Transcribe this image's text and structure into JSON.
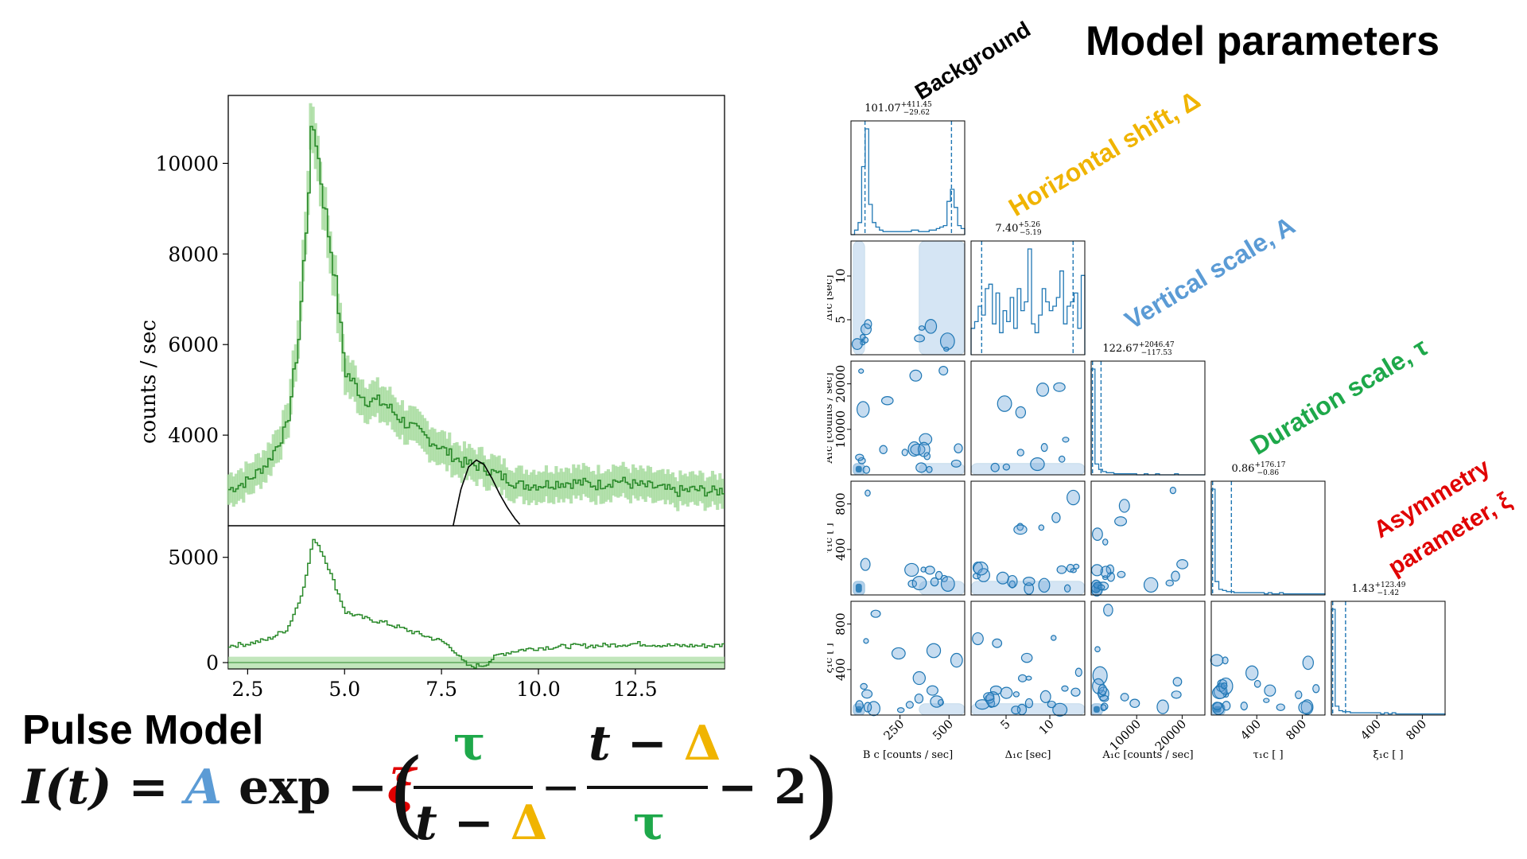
{
  "header": {
    "model_parameters": "Model parameters",
    "pulse_model": "Pulse Model"
  },
  "annotations": {
    "background": "Background",
    "horizontal_shift": "Horizontal shift, Δ",
    "vertical_scale": "Vertical scale, A",
    "duration_scale": "Duration scale, τ",
    "asymmetry_line1": "Asymmetry",
    "asymmetry_line2": "parameter, ξ"
  },
  "equation": {
    "lhs": "I(t) = ",
    "A": "A",
    "exp": " exp −",
    "xi": "ξ",
    "open": "(",
    "tau_num": "τ",
    "t_minus": "t − ",
    "delta": "Δ",
    "minus": "−",
    "tau_den": "τ",
    "minus_two": "− 2",
    "close": ")"
  },
  "colors": {
    "green": "#2a8a2a",
    "green_light": "#a8dca0",
    "blue_dark": "#1f77b4",
    "blue_fill": "#5b9bd5",
    "gold": "#f0b400",
    "red": "#e00000"
  },
  "chart_data": [
    {
      "type": "line",
      "panel": "light curve (top)",
      "ylabel": "counts / sec",
      "xlim": [
        2.0,
        14.8
      ],
      "ylim": [
        2000,
        11500
      ],
      "yticks": [
        "4000",
        "6000",
        "8000",
        "10000"
      ],
      "ytick_values": [
        4000,
        6000,
        8000,
        10000
      ],
      "series": [
        {
          "name": "data",
          "x": [
            2.0,
            2.5,
            3.0,
            3.5,
            3.8,
            4.0,
            4.1,
            4.2,
            4.3,
            4.5,
            4.7,
            5.0,
            5.5,
            6.0,
            6.5,
            7.0,
            7.5,
            8.0,
            8.5,
            9.0,
            9.5,
            10.0,
            10.5,
            11.0,
            11.5,
            12.0,
            12.5,
            13.0,
            13.5,
            14.0,
            14.5,
            14.8
          ],
          "values": [
            2800,
            3000,
            3400,
            4200,
            6200,
            8800,
            10400,
            10900,
            10100,
            8800,
            7700,
            5400,
            4800,
            4700,
            4300,
            4000,
            3700,
            3400,
            3300,
            3100,
            2900,
            2900,
            2950,
            2950,
            2900,
            3000,
            2900,
            2850,
            2750,
            2800,
            2750,
            2800
          ]
        },
        {
          "name": "pulse model",
          "x": [
            7.8,
            8.0,
            8.2,
            8.4,
            8.6,
            8.8,
            9.0,
            9.2,
            9.4,
            9.55
          ],
          "values": [
            2000,
            2800,
            3300,
            3450,
            3350,
            3050,
            2700,
            2400,
            2150,
            2000
          ]
        }
      ]
    },
    {
      "type": "line",
      "panel": "residual (bottom)",
      "xlim": [
        2.0,
        14.8
      ],
      "ylim": [
        -300,
        6500
      ],
      "xticks": [
        "2.5",
        "5.0",
        "7.5",
        "10.0",
        "12.5"
      ],
      "xtick_values": [
        2.5,
        5.0,
        7.5,
        10.0,
        12.5
      ],
      "yticks": [
        "0",
        "5000"
      ],
      "ytick_values": [
        0,
        5000
      ],
      "series": [
        {
          "name": "residual",
          "x": [
            2.0,
            2.5,
            3.0,
            3.5,
            3.8,
            4.0,
            4.1,
            4.2,
            4.3,
            4.5,
            4.7,
            5.0,
            5.5,
            6.0,
            6.5,
            7.0,
            7.5,
            7.8,
            8.0,
            8.2,
            8.4,
            8.6,
            8.8,
            9.0,
            9.5,
            10.0,
            10.5,
            11.0,
            11.5,
            12.0,
            12.5,
            13.0,
            13.5,
            14.0,
            14.5,
            14.8
          ],
          "values": [
            800,
            900,
            1100,
            1600,
            2900,
            4200,
            5300,
            5900,
            5600,
            4800,
            3800,
            2400,
            2100,
            1900,
            1600,
            1300,
            1000,
            600,
            100,
            -200,
            -150,
            -100,
            200,
            400,
            600,
            700,
            750,
            800,
            800,
            850,
            900,
            850,
            800,
            800,
            800,
            850
          ]
        }
      ]
    },
    {
      "type": "corner",
      "title": "Model parameters",
      "parameters": [
        "B",
        "Δ",
        "A",
        "τ",
        "ξ"
      ],
      "axis_labels": [
        "B c [counts / sec]",
        "Δ₁c [sec]",
        "A₁c [counts / sec]",
        "τ₁c [ ]",
        "ξ₁c [ ]"
      ],
      "marginal_titles": [
        {
          "value": "101.07",
          "plus": "+411.45",
          "minus": "−29.62"
        },
        {
          "value": "7.40",
          "plus": "+5.26",
          "minus": "−5.19"
        },
        {
          "value": "122.67",
          "plus": "+2046.47",
          "minus": "−117.53"
        },
        {
          "value": "0.86",
          "plus": "+176.17",
          "minus": "−0.86"
        },
        {
          "value": "1.43",
          "plus": "+123.49",
          "minus": "−1.42"
        }
      ],
      "ranges": [
        [
          0,
          580
        ],
        [
          1,
          14
        ],
        [
          0,
          25000
        ],
        [
          0,
          1000
        ],
        [
          0,
          1000
        ]
      ],
      "xtick_labels": [
        [
          "250",
          "500"
        ],
        [
          "5",
          "10"
        ],
        [
          "10000",
          "20000"
        ],
        [
          "400",
          "800"
        ],
        [
          "400",
          "800"
        ]
      ],
      "xtick_values": [
        [
          250,
          500
        ],
        [
          5,
          10
        ],
        [
          10000,
          20000
        ],
        [
          400,
          800
        ],
        [
          400,
          800
        ]
      ],
      "ytick_labels": [
        [],
        [
          "5",
          "10"
        ],
        [
          "10000",
          "20000"
        ],
        [
          "400",
          "800"
        ],
        [
          "400",
          "800"
        ]
      ],
      "ytick_values": [
        [],
        [
          5,
          10
        ],
        [
          10000,
          20000
        ],
        [
          400,
          800
        ],
        [
          400,
          800
        ]
      ],
      "hist_B": [
        0,
        3,
        8,
        45,
        70,
        20,
        8,
        5,
        3,
        2,
        2,
        2,
        2,
        2,
        2,
        2,
        2,
        3,
        3,
        2,
        2,
        2,
        3,
        3,
        4,
        5,
        6,
        22,
        30,
        18,
        6,
        4
      ],
      "hist_Delta": [
        12,
        15,
        22,
        18,
        30,
        32,
        14,
        28,
        10,
        20,
        15,
        26,
        12,
        30,
        20,
        24,
        48,
        14,
        10,
        18,
        30,
        24,
        20,
        22,
        26,
        38,
        14,
        22,
        24,
        28,
        12,
        36
      ],
      "hist_A": [
        98,
        10,
        5,
        3,
        2,
        2,
        1,
        1,
        1,
        1,
        1,
        1,
        0,
        0,
        1,
        0,
        0,
        1,
        0,
        0,
        0,
        0,
        1,
        0,
        0,
        0,
        0,
        0,
        0,
        0
      ],
      "hist_tau": [
        95,
        12,
        5,
        4,
        3,
        3,
        2,
        2,
        2,
        2,
        2,
        2,
        2,
        2,
        1,
        2,
        1,
        1,
        2,
        1,
        1,
        1,
        1,
        1,
        1,
        1,
        1,
        1,
        1,
        1
      ],
      "hist_xi": [
        96,
        8,
        4,
        3,
        3,
        2,
        2,
        2,
        2,
        2,
        2,
        2,
        2,
        1,
        2,
        1,
        2,
        1,
        1,
        1,
        1,
        1,
        1,
        1,
        1,
        1,
        1,
        1,
        1,
        1
      ],
      "quantile_lines": {
        "B": [
          71.45,
          512.52
        ],
        "Delta": [
          2.21,
          12.66
        ],
        "A": [
          5.14,
          2169.14
        ],
        "tau": [
          0.0,
          177.03
        ],
        "xi": [
          0.01,
          124.92
        ]
      }
    }
  ]
}
